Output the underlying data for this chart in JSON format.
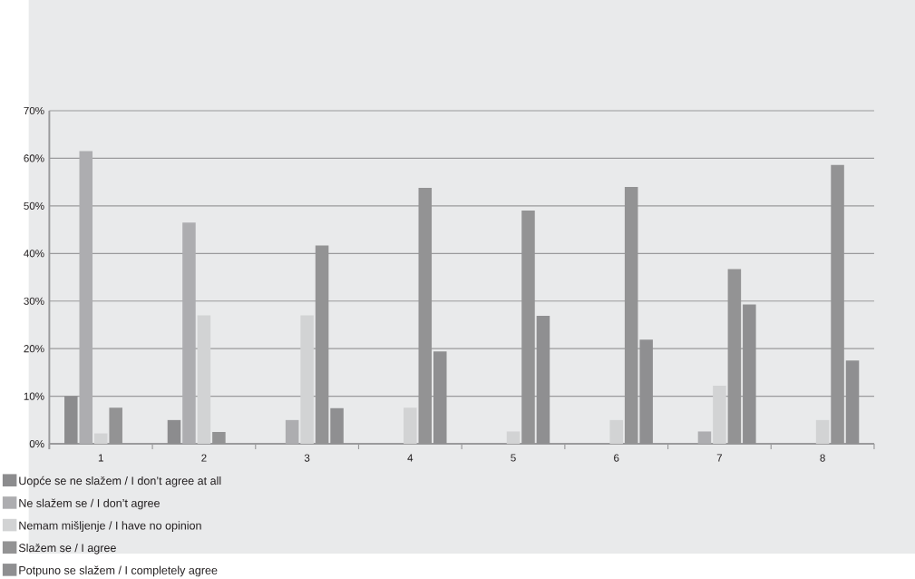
{
  "chart_data": {
    "type": "bar",
    "categories": [
      "1",
      "2",
      "3",
      "4",
      "5",
      "6",
      "7",
      "8"
    ],
    "series": [
      {
        "name": "Uopće se ne slažem / I don’t agree at all",
        "color": "#8c8c8e",
        "values": [
          10.0,
          5.0,
          0,
          0,
          0,
          0,
          0,
          0
        ]
      },
      {
        "name": "Ne slažem se / I don’t agree",
        "color": "#adadb0",
        "values": [
          61.5,
          46.5,
          5.0,
          0,
          0,
          0,
          2.6,
          0
        ]
      },
      {
        "name": "Nemam mišljenje / I have no opinion",
        "color": "#d2d3d4",
        "values": [
          2.2,
          27.0,
          27.0,
          7.6,
          2.6,
          5.0,
          12.2,
          5.0
        ]
      },
      {
        "name": "Slažem se / I agree",
        "color": "#939394",
        "values": [
          7.6,
          2.5,
          41.7,
          53.8,
          49.0,
          54.0,
          36.7,
          58.6
        ]
      },
      {
        "name": "Potpuno se slažem / I completely agree",
        "color": "#8f8f91",
        "values": [
          0,
          0,
          7.5,
          19.4,
          26.9,
          21.9,
          29.3,
          17.5
        ]
      }
    ],
    "ylim": [
      0,
      70
    ],
    "yticks": [
      {
        "value": 0,
        "label": "0%"
      },
      {
        "value": 10,
        "label": "10%"
      },
      {
        "value": 20,
        "label": "20%"
      },
      {
        "value": 30,
        "label": "30%"
      },
      {
        "value": 40,
        "label": "40%"
      },
      {
        "value": 50,
        "label": "50%"
      },
      {
        "value": 60,
        "label": "60%"
      },
      {
        "value": 70,
        "label": "70%"
      }
    ],
    "grid": "y",
    "legend": "bottom"
  }
}
